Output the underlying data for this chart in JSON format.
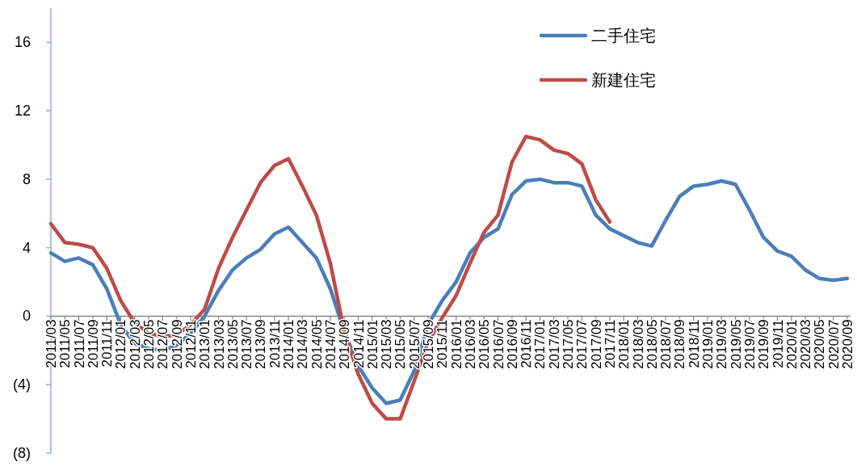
{
  "chart_data": {
    "type": "line",
    "categories": [
      "2011/03",
      "2011/05",
      "2011/07",
      "2011/09",
      "2011/11",
      "2012/01",
      "2012/03",
      "2012/05",
      "2012/07",
      "2012/09",
      "2012/11",
      "2013/01",
      "2013/03",
      "2013/05",
      "2013/07",
      "2013/09",
      "2013/11",
      "2014/01",
      "2014/03",
      "2014/05",
      "2014/07",
      "2014/09",
      "2014/11",
      "2015/01",
      "2015/03",
      "2015/05",
      "2015/07",
      "2015/09",
      "2015/11",
      "2016/01",
      "2016/03",
      "2016/05",
      "2016/07",
      "2016/09",
      "2016/11",
      "2017/01",
      "2017/03",
      "2017/05",
      "2017/07",
      "2017/09",
      "2017/11",
      "2018/01",
      "2018/03",
      "2018/05",
      "2018/07",
      "2018/09",
      "2018/11",
      "2019/01",
      "2019/03",
      "2019/05",
      "2019/07",
      "2019/09",
      "2019/11",
      "2020/01",
      "2020/03",
      "2020/05",
      "2020/07",
      "2020/09"
    ],
    "series": [
      {
        "name": "二手住宅",
        "color": "#4a7ebb",
        "values": [
          3.7,
          3.2,
          3.4,
          3.0,
          1.6,
          -0.5,
          -1.6,
          -1.9,
          -2.0,
          -1.7,
          -1.0,
          0.0,
          1.5,
          2.7,
          3.4,
          3.9,
          4.8,
          5.2,
          4.3,
          3.4,
          1.6,
          -0.9,
          -2.9,
          -4.2,
          -5.1,
          -4.9,
          -3.2,
          -0.5,
          0.9,
          2.0,
          3.7,
          4.6,
          5.1,
          7.1,
          7.9,
          8.0,
          7.8,
          7.8,
          7.6,
          5.9,
          5.1,
          4.7,
          4.3,
          4.1,
          5.6,
          7.0,
          7.6,
          7.7,
          7.9,
          7.7,
          6.2,
          4.6,
          3.8,
          3.5,
          2.7,
          2.2,
          2.1,
          2.2
        ]
      },
      {
        "name": "新建住宅",
        "color": "#be4b48",
        "values": [
          5.4,
          4.3,
          4.2,
          4.0,
          2.8,
          0.9,
          -0.4,
          -1.0,
          -1.2,
          -1.1,
          -0.5,
          0.4,
          2.8,
          4.6,
          6.2,
          7.8,
          8.8,
          9.2,
          7.6,
          5.9,
          3.1,
          -0.9,
          -3.4,
          -5.1,
          -6.0,
          -6.0,
          -3.8,
          -1.5,
          -0.1,
          1.2,
          3.1,
          4.9,
          5.9,
          9.0,
          10.5,
          10.3,
          9.7,
          9.5,
          8.9,
          6.8,
          5.5,
          null,
          null,
          null,
          null,
          null,
          null,
          null,
          null,
          null,
          null,
          null,
          null,
          null,
          null,
          null,
          null,
          null
        ]
      }
    ],
    "ylim": [
      -8,
      18
    ],
    "yticks": [
      {
        "value": -8,
        "label": "(8)"
      },
      {
        "value": -4,
        "label": "(4)"
      },
      0,
      4,
      8,
      12,
      16
    ],
    "legend": "top right"
  }
}
